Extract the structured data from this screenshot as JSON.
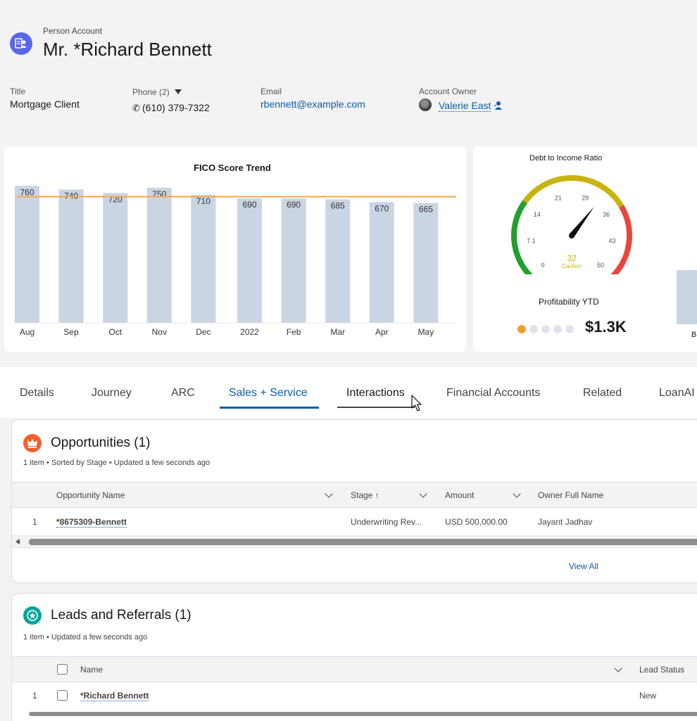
{
  "header": {
    "record_type": "Person Account",
    "name": "Mr. *Richard Bennett",
    "fields": {
      "title_label": "Title",
      "title_value": "Mortgage Client",
      "phone_label": "Phone (2)",
      "phone_value": "(610) 379-7322",
      "email_label": "Email",
      "email_value": "rbennett@example.com",
      "owner_label": "Account Owner",
      "owner_value": "Valerie East"
    }
  },
  "fico_chart": {
    "chart_data": {
      "type": "bar",
      "title": "FICO Score Trend",
      "categories": [
        "Aug",
        "Sep",
        "Oct",
        "Nov",
        "Dec",
        "2022",
        "Feb",
        "Mar",
        "Apr",
        "May"
      ],
      "values": [
        760,
        740,
        720,
        750,
        710,
        690,
        690,
        685,
        670,
        665
      ],
      "ylim": [
        0,
        800
      ],
      "reference_line": 700,
      "bar_color": "#c9d5e3",
      "line_color": "#f5a64a"
    }
  },
  "dti_gauge": {
    "title": "Debt to Income Ratio",
    "ticks": [
      "0",
      "7.1",
      "14",
      "21",
      "29",
      "36",
      "43",
      "50"
    ],
    "value": "32",
    "value_num": 32,
    "max": 50,
    "status": "Caution",
    "colors": {
      "low": "#22a02b",
      "mid": "#c9b30f",
      "high": "#e8463c"
    }
  },
  "profitability": {
    "title": "Profitability YTD",
    "value": "$1.3K",
    "dots_active": 1,
    "dots_total": 5,
    "active_color": "#f0a030",
    "inactive_color": "#dfe3ea"
  },
  "right_partial": {
    "label": "B"
  },
  "tabs": [
    {
      "label": "Details",
      "active": false
    },
    {
      "label": "Journey",
      "active": false
    },
    {
      "label": "ARC",
      "active": false
    },
    {
      "label": "Sales + Service",
      "active": true
    },
    {
      "label": "Interactions",
      "active": false,
      "hovered": true
    },
    {
      "label": "Financial Accounts",
      "active": false
    },
    {
      "label": "Related",
      "active": false
    },
    {
      "label": "LoanAI",
      "active": false
    }
  ],
  "opportunities": {
    "title": "Opportunities (1)",
    "subtitle": "1 item • Sorted by Stage • Updated a few seconds ago",
    "columns": [
      "Opportunity Name",
      "Stage",
      "Amount",
      "Owner Full Name"
    ],
    "rows": [
      {
        "num": "1",
        "name": "*8675309-Bennett",
        "stage": "Underwriting Rev...",
        "amount": "USD 500,000.00",
        "owner": "Jayant Jadhav"
      }
    ],
    "view_all": "View All",
    "icon_color": "#f5602d"
  },
  "leads": {
    "title": "Leads and Referrals (1)",
    "subtitle": "1 item • Updated a few seconds ago",
    "columns": [
      "Name",
      "Lead Status"
    ],
    "rows": [
      {
        "num": "1",
        "name": "*Richard Bennett",
        "status": "New"
      }
    ],
    "icon_color": "#06a59a"
  }
}
